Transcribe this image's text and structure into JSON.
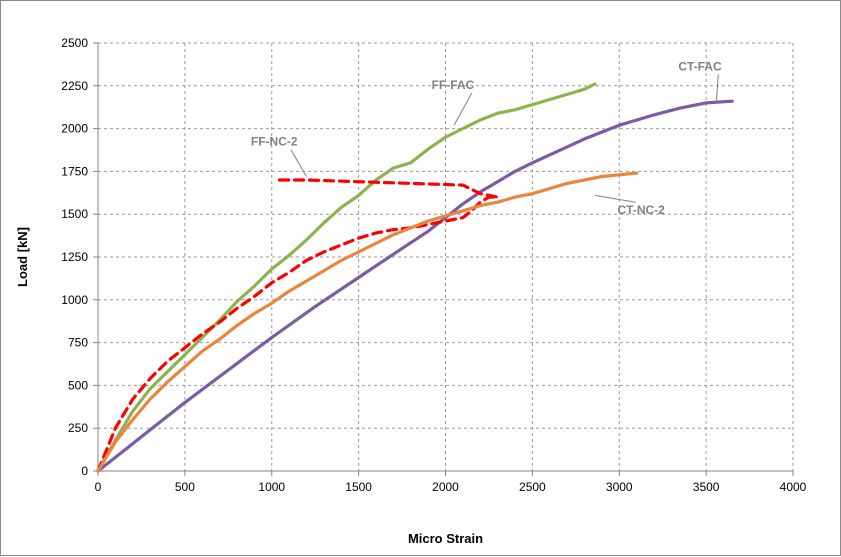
{
  "chart_data": {
    "type": "line",
    "title": "",
    "xlabel": "Micro Strain",
    "ylabel": "Load [kN]",
    "xlim": [
      0,
      4000
    ],
    "ylim": [
      0,
      2500
    ],
    "x_ticks": [
      0,
      500,
      1000,
      1500,
      2000,
      2500,
      3000,
      3500,
      4000
    ],
    "y_ticks": [
      0,
      250,
      500,
      750,
      1000,
      1250,
      1500,
      1750,
      2000,
      2250,
      2500
    ],
    "grid": "dashed",
    "legend": "none",
    "series": [
      {
        "name": "CT-FAC",
        "color": "#7b5aa6",
        "style": "solid",
        "x": [
          0,
          150,
          300,
          500,
          750,
          1000,
          1250,
          1500,
          1750,
          1900,
          2000,
          2100,
          2200,
          2300,
          2400,
          2500,
          2650,
          2800,
          3000,
          3200,
          3350,
          3500,
          3650
        ],
        "y": [
          0,
          120,
          240,
          400,
          590,
          780,
          960,
          1130,
          1300,
          1400,
          1480,
          1560,
          1630,
          1690,
          1750,
          1800,
          1870,
          1940,
          2020,
          2080,
          2120,
          2150,
          2160
        ]
      },
      {
        "name": "FF-FAC",
        "color": "#8cb350",
        "style": "solid",
        "x": [
          0,
          100,
          200,
          300,
          400,
          500,
          600,
          700,
          800,
          900,
          1000,
          1100,
          1200,
          1300,
          1400,
          1500,
          1600,
          1700,
          1800,
          1900,
          2000,
          2100,
          2200,
          2300,
          2400,
          2500,
          2600,
          2700,
          2800,
          2860
        ],
        "y": [
          0,
          180,
          350,
          480,
          580,
          680,
          780,
          880,
          990,
          1080,
          1180,
          1260,
          1350,
          1450,
          1540,
          1610,
          1700,
          1770,
          1800,
          1880,
          1950,
          2000,
          2050,
          2090,
          2110,
          2140,
          2170,
          2200,
          2230,
          2260
        ]
      },
      {
        "name": "FF-NC-2",
        "color": "#ff0000",
        "style": "dashed",
        "x": [
          0,
          100,
          200,
          300,
          400,
          500,
          600,
          700,
          800,
          900,
          1000,
          1100,
          1200,
          1300,
          1400,
          1500,
          1600,
          1700,
          1800,
          1900,
          2000,
          2100,
          2150,
          2200,
          2250,
          2300,
          2200,
          2100,
          1800,
          1500,
          1200,
          1020
        ],
        "y": [
          0,
          250,
          420,
          540,
          640,
          720,
          800,
          870,
          950,
          1020,
          1100,
          1160,
          1230,
          1280,
          1320,
          1360,
          1390,
          1410,
          1420,
          1440,
          1460,
          1480,
          1520,
          1570,
          1600,
          1600,
          1620,
          1670,
          1680,
          1690,
          1700,
          1700
        ]
      },
      {
        "name": "CT-NC-2",
        "color": "#e8863d",
        "style": "solid",
        "x": [
          0,
          100,
          200,
          300,
          400,
          500,
          600,
          700,
          800,
          900,
          1000,
          1100,
          1200,
          1300,
          1400,
          1500,
          1600,
          1700,
          1800,
          1900,
          2000,
          2100,
          2200,
          2300,
          2400,
          2500,
          2600,
          2700,
          2800,
          2900,
          3000,
          3100
        ],
        "y": [
          0,
          170,
          300,
          420,
          520,
          610,
          700,
          770,
          850,
          920,
          980,
          1050,
          1110,
          1170,
          1230,
          1280,
          1330,
          1380,
          1420,
          1460,
          1490,
          1520,
          1550,
          1570,
          1600,
          1620,
          1650,
          1680,
          1700,
          1720,
          1730,
          1740
        ]
      }
    ],
    "annotations": [
      {
        "text": "FF-FAC",
        "x": 1920,
        "y": 2230,
        "point_x": 2050,
        "point_y": 2020
      },
      {
        "text": "CT-FAC",
        "x": 3340,
        "y": 2340,
        "point_x": 3560,
        "point_y": 2165
      },
      {
        "text": "FF-NC-2",
        "x": 880,
        "y": 1900,
        "point_x": 1200,
        "point_y": 1720
      },
      {
        "text": "CT-NC-2",
        "x": 2990,
        "y": 1500,
        "point_x": 2860,
        "point_y": 1610
      }
    ]
  }
}
